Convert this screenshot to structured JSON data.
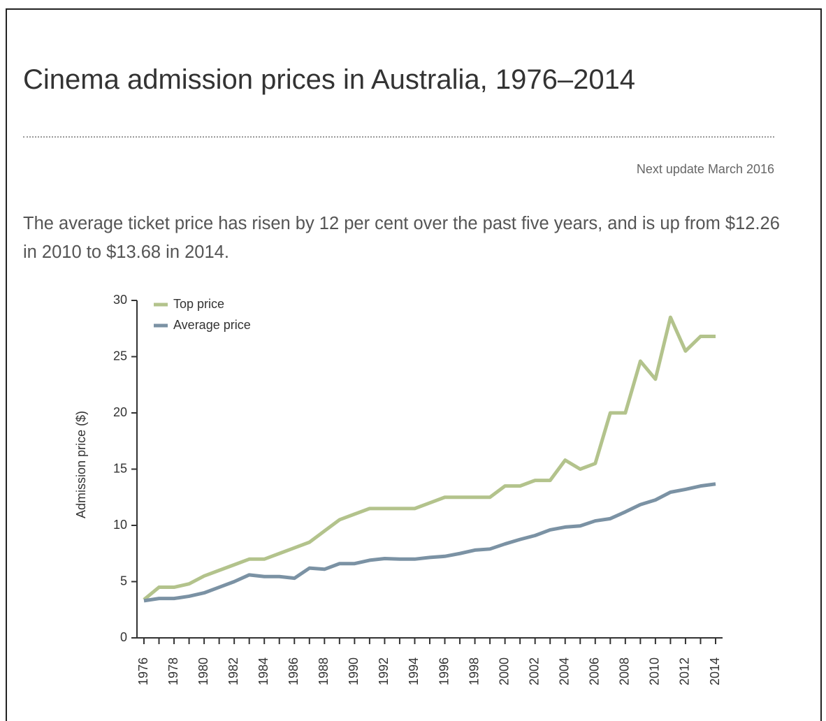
{
  "title": "Cinema admission prices in Australia, 1976–2014",
  "note": "Next update March 2016",
  "paragraph": "The average ticket price has risen by 12 per cent over the past five years, and is up from $12.26 in 2010 to $13.68 in 2014.",
  "chart_data": {
    "type": "line",
    "y_label": "Admission price ($)",
    "categories": [
      "1976",
      null,
      "1978",
      null,
      "1980",
      null,
      "1982",
      null,
      "1984",
      null,
      "1986",
      null,
      "1988",
      null,
      "1990",
      null,
      "1992",
      null,
      "1994",
      null,
      "1996",
      null,
      "1998",
      null,
      "2000",
      null,
      "2002",
      null,
      "2004",
      null,
      "2006",
      null,
      "2008",
      null,
      "2010",
      null,
      "2012",
      null,
      "2014"
    ],
    "series": [
      {
        "name": "Top price",
        "color": "#b3c38c",
        "values": [
          3.4,
          4.5,
          4.5,
          4.8,
          5.5,
          6.0,
          6.5,
          7.0,
          7.0,
          7.5,
          8.0,
          8.5,
          9.5,
          10.5,
          11.0,
          11.5,
          11.5,
          11.5,
          11.5,
          12.0,
          12.5,
          12.5,
          12.5,
          12.5,
          13.5,
          13.5,
          14.0,
          14.0,
          15.8,
          15.0,
          15.5,
          20.0,
          20.0,
          24.6,
          23.0,
          28.5,
          25.5,
          26.8,
          26.8
        ]
      },
      {
        "name": "Average price",
        "color": "#7b92a4",
        "values": [
          3.3,
          3.5,
          3.5,
          3.7,
          4.0,
          4.5,
          5.0,
          5.6,
          5.45,
          5.45,
          5.3,
          6.2,
          6.1,
          6.6,
          6.6,
          6.9,
          7.05,
          7.0,
          7.0,
          7.15,
          7.25,
          7.5,
          7.8,
          7.9,
          8.35,
          8.75,
          9.1,
          9.6,
          9.85,
          9.95,
          10.4,
          10.6,
          11.2,
          11.85,
          12.26,
          12.95,
          13.2,
          13.5,
          13.68
        ]
      }
    ],
    "ylim": [
      0,
      30
    ],
    "yticks": [
      0,
      5,
      10,
      15,
      20,
      25,
      30
    ],
    "grid": false,
    "legend": "top-left"
  }
}
